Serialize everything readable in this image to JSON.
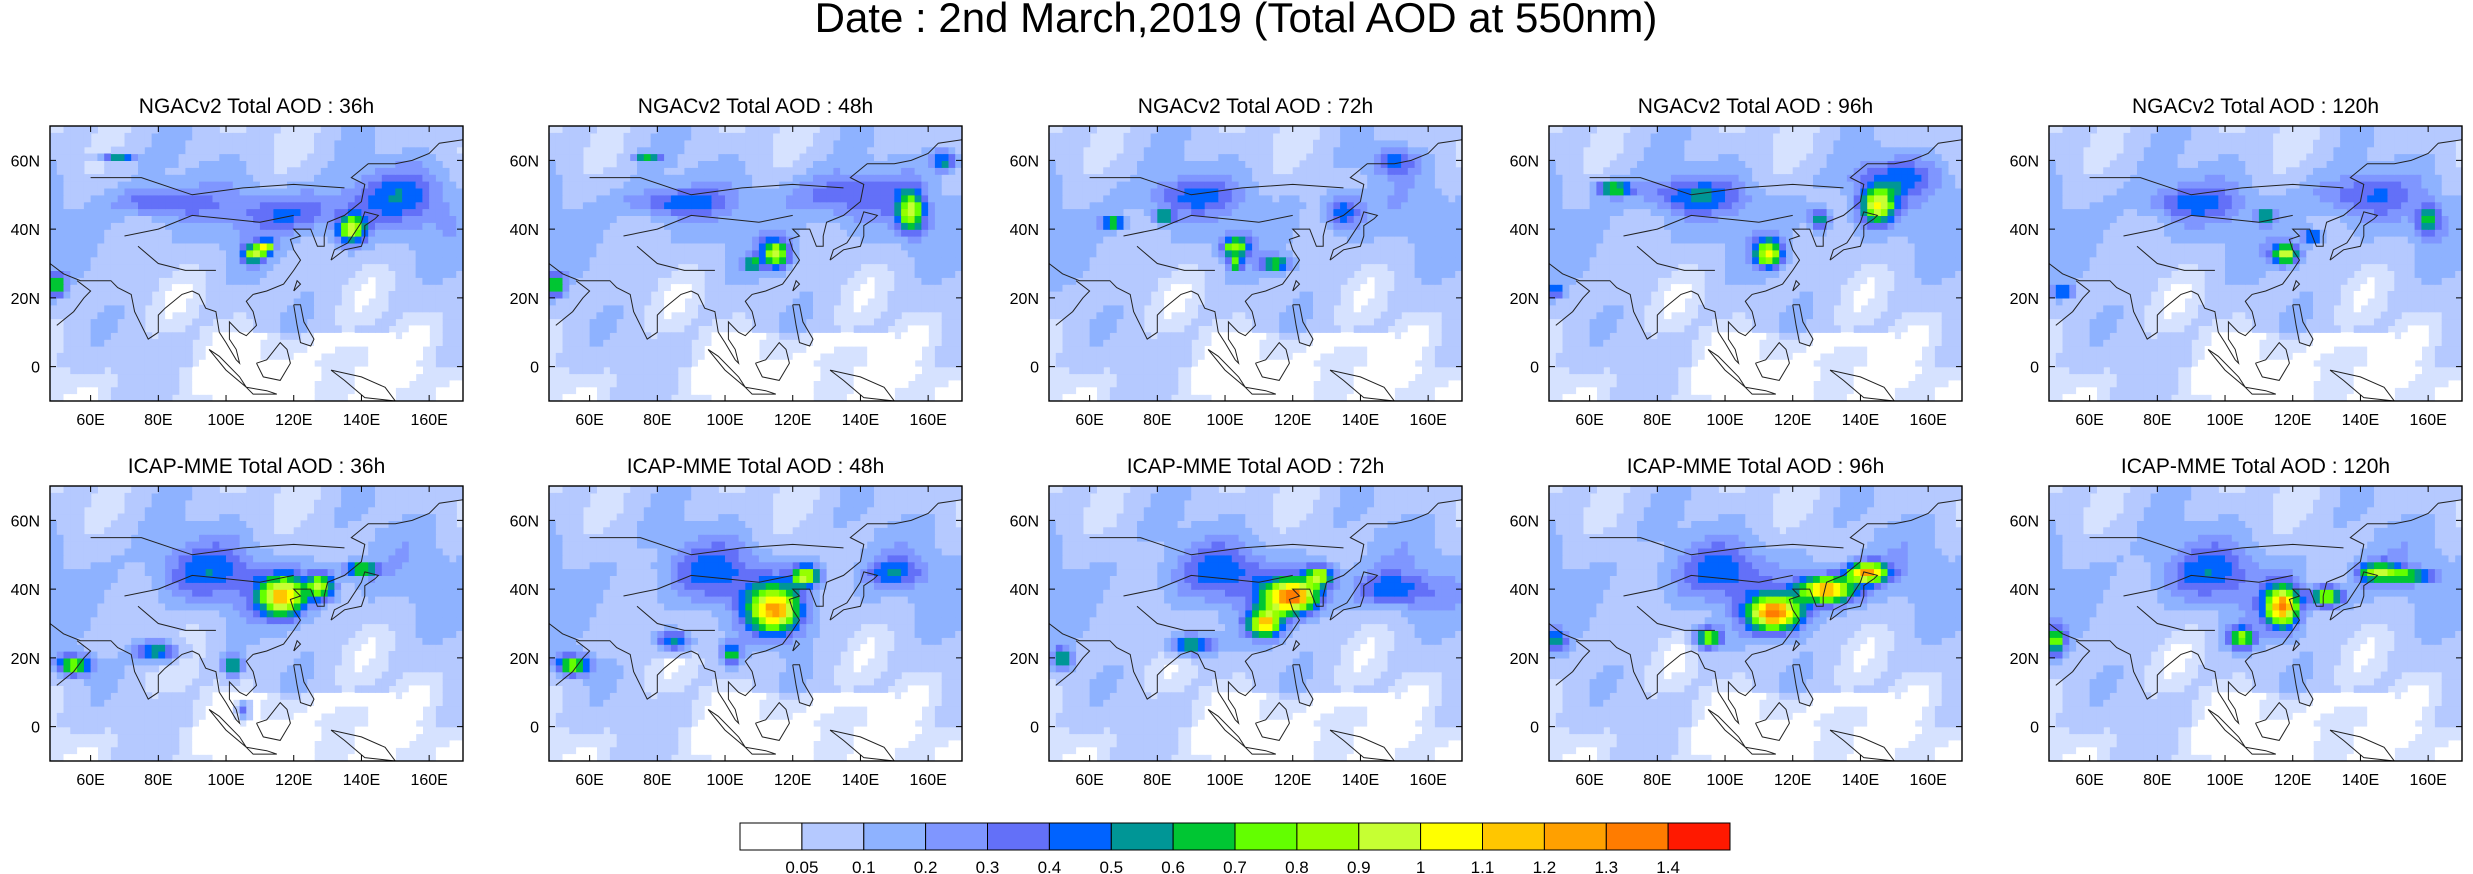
{
  "figure": {
    "title": "Date : 2nd March,2019 (Total AOD at 550nm)"
  },
  "map_extent": {
    "lon": [
      48,
      170
    ],
    "lat": [
      -10,
      70
    ]
  },
  "axes": {
    "lon_ticks": [
      60,
      80,
      100,
      120,
      140,
      160
    ],
    "lon_tick_labels": [
      "60E",
      "80E",
      "100E",
      "120E",
      "140E",
      "160E"
    ],
    "lat_ticks": [
      0,
      20,
      40,
      60
    ],
    "lat_tick_labels": [
      "0",
      "20N",
      "40N",
      "60N"
    ]
  },
  "rows": [
    {
      "model": "NGACv2",
      "panels": [
        {
          "title": "NGACv2 Total AOD : 36h",
          "lead": "36h"
        },
        {
          "title": "NGACv2 Total AOD : 48h",
          "lead": "48h"
        },
        {
          "title": "NGACv2 Total AOD : 72h",
          "lead": "72h"
        },
        {
          "title": "NGACv2 Total AOD : 96h",
          "lead": "96h"
        },
        {
          "title": "NGACv2 Total AOD : 120h",
          "lead": "120h"
        }
      ]
    },
    {
      "model": "ICAP-MME",
      "panels": [
        {
          "title": "ICAP-MME Total AOD : 36h",
          "lead": "36h"
        },
        {
          "title": "ICAP-MME Total AOD : 48h",
          "lead": "48h"
        },
        {
          "title": "ICAP-MME Total AOD : 72h",
          "lead": "72h"
        },
        {
          "title": "ICAP-MME Total AOD : 96h",
          "lead": "96h"
        },
        {
          "title": "ICAP-MME Total AOD : 120h",
          "lead": "120h"
        }
      ]
    }
  ],
  "colorbar": {
    "labels": [
      "0.05",
      "0.1",
      "0.2",
      "0.3",
      "0.4",
      "0.5",
      "0.6",
      "0.7",
      "0.8",
      "0.9",
      "1",
      "1.1",
      "1.2",
      "1.3",
      "1.4"
    ],
    "colors": [
      "#ffffff",
      "#d6e2ff",
      "#b5c9ff",
      "#8eb2ff",
      "#7f96ff",
      "#6370f8",
      "#0063ff",
      "#009696",
      "#00c633",
      "#63ff00",
      "#96ff00",
      "#c6ff33",
      "#ffff00",
      "#ffc600",
      "#ffa000",
      "#ff7c00",
      "#ff1900"
    ]
  },
  "plumes": [
    [
      [
        [
          108,
          33,
          3,
          2.5,
          0.8
        ],
        [
          112,
          35,
          2.2,
          2,
          0.8
        ],
        [
          137,
          40,
          4,
          4,
          0.85
        ],
        [
          68,
          61,
          5,
          1.2,
          0.6
        ],
        [
          50,
          24,
          2.5,
          3,
          0.7
        ],
        [
          80,
          48,
          12,
          4,
          0.35
        ],
        [
          120,
          45,
          18,
          6,
          0.3
        ],
        [
          150,
          50,
          14,
          8,
          0.3
        ]
      ],
      [
        [
          115,
          33,
          4,
          4,
          0.85
        ],
        [
          108,
          30,
          2,
          2,
          0.6
        ],
        [
          155,
          45,
          4,
          6,
          0.75
        ],
        [
          165,
          60,
          4,
          3,
          0.5
        ],
        [
          77,
          61,
          4,
          1.2,
          0.55
        ],
        [
          50,
          24,
          2.5,
          3,
          0.7
        ],
        [
          85,
          48,
          14,
          4,
          0.35
        ],
        [
          135,
          50,
          16,
          7,
          0.3
        ]
      ],
      [
        [
          67,
          42,
          3,
          2,
          0.7
        ],
        [
          82,
          44,
          3,
          2,
          0.6
        ],
        [
          103,
          35,
          4,
          3,
          0.75
        ],
        [
          115,
          30,
          4,
          2,
          0.7
        ],
        [
          103,
          30,
          2,
          2,
          0.6
        ],
        [
          135,
          45,
          5,
          5,
          0.45
        ],
        [
          150,
          60,
          6,
          4,
          0.35
        ],
        [
          90,
          50,
          14,
          5,
          0.3
        ]
      ],
      [
        [
          67,
          52,
          5,
          2,
          0.7
        ],
        [
          113,
          33,
          4,
          4,
          0.9
        ],
        [
          145,
          47,
          5,
          5,
          0.85
        ],
        [
          128,
          43,
          3,
          3,
          0.6
        ],
        [
          50,
          22,
          2,
          2,
          0.5
        ],
        [
          90,
          50,
          15,
          5,
          0.35
        ],
        [
          150,
          55,
          14,
          6,
          0.3
        ]
      ],
      [
        [
          118,
          33,
          4,
          3,
          0.9
        ],
        [
          112,
          44,
          2,
          2,
          0.65
        ],
        [
          160,
          43,
          3,
          4,
          0.6
        ],
        [
          126,
          38,
          3,
          2,
          0.6
        ],
        [
          52,
          22,
          3,
          2,
          0.5
        ],
        [
          90,
          48,
          14,
          5,
          0.3
        ],
        [
          140,
          50,
          14,
          6,
          0.3
        ]
      ]
    ],
    [
      [
        [
          117,
          38,
          7,
          6,
          1.05
        ],
        [
          128,
          41,
          4,
          4,
          0.85
        ],
        [
          140,
          46,
          5,
          2,
          0.7
        ],
        [
          55,
          18,
          5,
          3,
          0.75
        ],
        [
          80,
          22,
          6,
          3,
          0.6
        ],
        [
          102,
          18,
          3,
          3,
          0.65
        ],
        [
          105,
          5,
          2,
          3,
          0.5
        ],
        [
          95,
          45,
          15,
          8,
          0.3
        ]
      ],
      [
        [
          115,
          34,
          8,
          7,
          1.1
        ],
        [
          124,
          44,
          4,
          3,
          0.9
        ],
        [
          55,
          18,
          5,
          3,
          0.75
        ],
        [
          85,
          25,
          5,
          3,
          0.6
        ],
        [
          102,
          21,
          3,
          3,
          0.6
        ],
        [
          97,
          45,
          14,
          8,
          0.3
        ],
        [
          150,
          45,
          8,
          4,
          0.35
        ]
      ],
      [
        [
          120,
          38,
          8,
          5,
          1.3
        ],
        [
          112,
          30,
          5,
          4,
          1.0
        ],
        [
          90,
          24,
          6,
          3,
          0.7
        ],
        [
          128,
          44,
          4,
          3,
          0.85
        ],
        [
          52,
          20,
          3,
          3,
          0.6
        ],
        [
          100,
          45,
          14,
          8,
          0.3
        ],
        [
          150,
          40,
          12,
          5,
          0.35
        ]
      ],
      [
        [
          115,
          33,
          8,
          5,
          1.25
        ],
        [
          130,
          40,
          8,
          4,
          1.2
        ],
        [
          142,
          45,
          6,
          3,
          1.1
        ],
        [
          95,
          26,
          4,
          3,
          0.8
        ],
        [
          50,
          25,
          3,
          3,
          0.5
        ],
        [
          100,
          45,
          14,
          8,
          0.3
        ]
      ],
      [
        [
          117,
          35,
          5,
          6,
          1.2
        ],
        [
          130,
          38,
          5,
          3,
          0.85
        ],
        [
          145,
          45,
          6,
          3,
          0.75
        ],
        [
          155,
          44,
          6,
          2,
          0.6
        ],
        [
          105,
          26,
          4,
          3,
          0.75
        ],
        [
          50,
          25,
          3,
          4,
          0.7
        ],
        [
          95,
          45,
          14,
          8,
          0.3
        ]
      ]
    ]
  ]
}
